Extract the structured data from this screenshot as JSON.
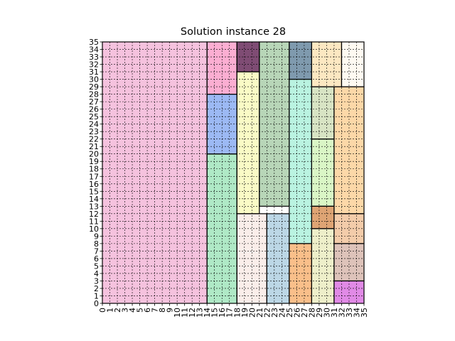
{
  "chart_data": {
    "type": "heatmap",
    "title": "Solution instance 28",
    "xlabel": "",
    "ylabel": "",
    "xlim": [
      0,
      35
    ],
    "ylim": [
      0,
      35
    ],
    "x_ticks": [
      "0",
      "1",
      "2",
      "3",
      "4",
      "5",
      "6",
      "7",
      "8",
      "9",
      "10",
      "11",
      "12",
      "13",
      "14",
      "15",
      "16",
      "17",
      "18",
      "19",
      "20",
      "21",
      "22",
      "23",
      "24",
      "25",
      "26",
      "27",
      "28",
      "29",
      "30",
      "31",
      "32",
      "33",
      "34",
      "35"
    ],
    "y_ticks": [
      "0",
      "1",
      "2",
      "3",
      "4",
      "5",
      "6",
      "7",
      "8",
      "9",
      "10",
      "11",
      "12",
      "13",
      "14",
      "15",
      "16",
      "17",
      "18",
      "19",
      "20",
      "21",
      "22",
      "23",
      "24",
      "25",
      "26",
      "27",
      "28",
      "29",
      "30",
      "31",
      "32",
      "33",
      "34",
      "35"
    ],
    "grid": true,
    "grid_style": "dashed",
    "rectangles": [
      {
        "x0": 0,
        "y0": 0,
        "x1": 14,
        "y1": 35,
        "color": "#f5c2de"
      },
      {
        "x0": 14,
        "y0": 28,
        "x1": 18,
        "y1": 35,
        "color": "#fbaed2"
      },
      {
        "x0": 14,
        "y0": 20,
        "x1": 18,
        "y1": 28,
        "color": "#9cb9f4"
      },
      {
        "x0": 14,
        "y0": 0,
        "x1": 18,
        "y1": 20,
        "color": "#afe9c6"
      },
      {
        "x0": 18,
        "y0": 31,
        "x1": 21,
        "y1": 35,
        "color": "#7f4c74"
      },
      {
        "x0": 18,
        "y0": 12,
        "x1": 21,
        "y1": 31,
        "color": "#fafbc6"
      },
      {
        "x0": 21,
        "y0": 13,
        "x1": 25,
        "y1": 35,
        "color": "#b8d6b8"
      },
      {
        "x0": 18,
        "y0": 0,
        "x1": 22,
        "y1": 12,
        "color": "#faeeea"
      },
      {
        "x0": 22,
        "y0": 0,
        "x1": 25,
        "y1": 12,
        "color": "#bcd7e6"
      },
      {
        "x0": 25,
        "y0": 30,
        "x1": 28,
        "y1": 35,
        "color": "#7f9aae"
      },
      {
        "x0": 25,
        "y0": 8,
        "x1": 28,
        "y1": 30,
        "color": "#baf3e1"
      },
      {
        "x0": 25,
        "y0": 0,
        "x1": 28,
        "y1": 8,
        "color": "#f9bf8a"
      },
      {
        "x0": 28,
        "y0": 29,
        "x1": 32,
        "y1": 35,
        "color": "#fce8c2"
      },
      {
        "x0": 32,
        "y0": 29,
        "x1": 35,
        "y1": 35,
        "color": "#fefaf2"
      },
      {
        "x0": 28,
        "y0": 22,
        "x1": 31,
        "y1": 29,
        "color": "#d8e4c4"
      },
      {
        "x0": 28,
        "y0": 13,
        "x1": 31,
        "y1": 22,
        "color": "#daf6c6"
      },
      {
        "x0": 31,
        "y0": 12,
        "x1": 35,
        "y1": 29,
        "color": "#fcd8a8"
      },
      {
        "x0": 28,
        "y0": 10,
        "x1": 31,
        "y1": 13,
        "color": "#dea474"
      },
      {
        "x0": 31,
        "y0": 8,
        "x1": 35,
        "y1": 12,
        "color": "#f3ccaa"
      },
      {
        "x0": 28,
        "y0": 0,
        "x1": 31,
        "y1": 10,
        "color": "#eeefca"
      },
      {
        "x0": 31,
        "y0": 3,
        "x1": 35,
        "y1": 8,
        "color": "#dec3ba"
      },
      {
        "x0": 31,
        "y0": 0,
        "x1": 35,
        "y1": 3,
        "color": "#e18ae6"
      }
    ]
  }
}
